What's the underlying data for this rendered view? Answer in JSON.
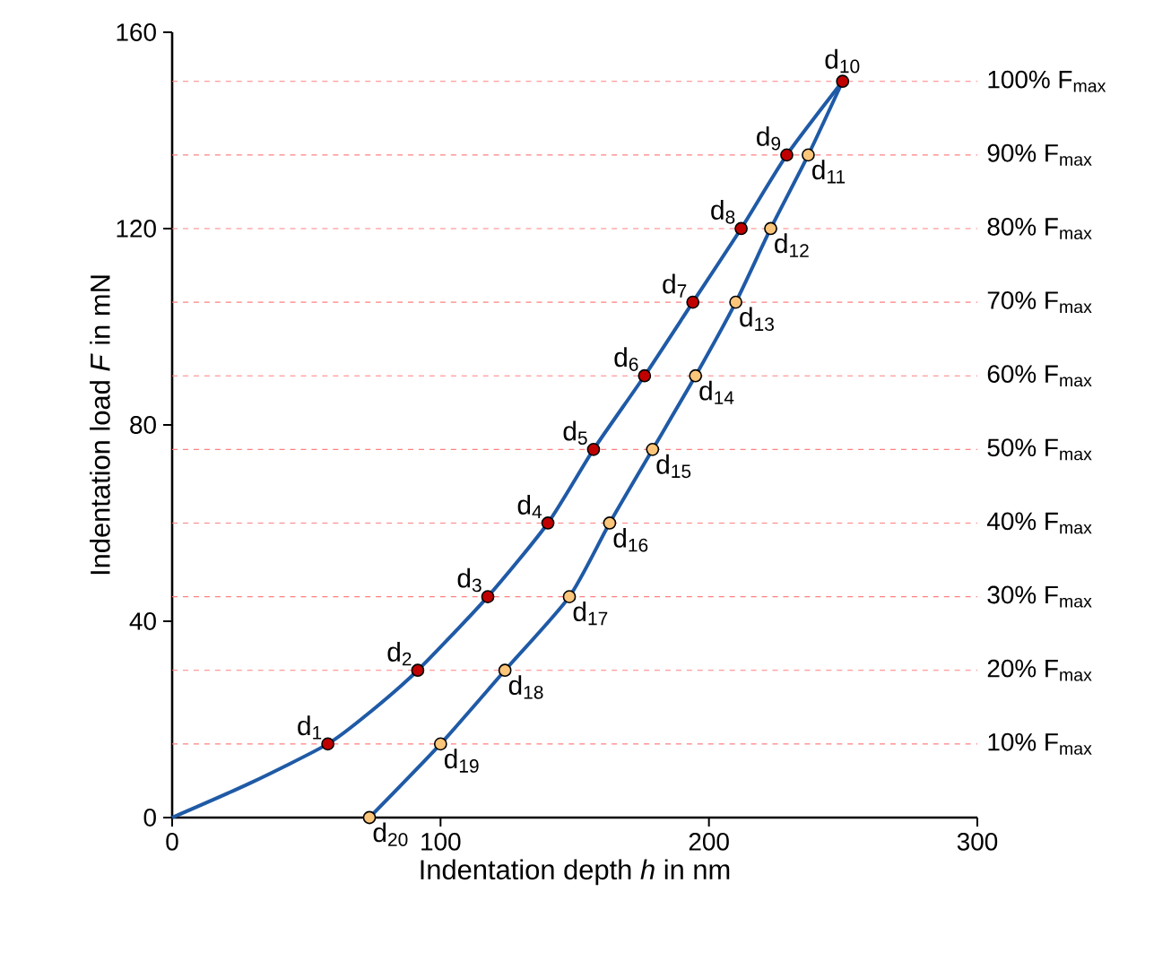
{
  "chart_data": {
    "type": "line",
    "xlabel": "Indentation depth *h* in nm",
    "ylabel": "Indentation load *F* in mN",
    "xlim": [
      0,
      300
    ],
    "xticks": [
      0,
      100,
      200,
      300
    ],
    "ylim": [
      0,
      160
    ],
    "yticks": [
      0,
      40,
      80,
      120,
      160
    ],
    "series": [
      {
        "color": "#1f5aa6",
        "x": [
          0,
          29,
          58,
          74,
          91.5,
          117.6,
          140,
          157,
          176,
          194,
          212,
          229,
          249.8
        ],
        "values": [
          0,
          7,
          15,
          21.6,
          30,
          45,
          60,
          75,
          90,
          105,
          120,
          135,
          150
        ]
      },
      {
        "color": "#1f5aa6",
        "x": [
          249.8,
          237,
          223,
          210,
          195,
          179,
          163,
          148,
          124,
          100,
          73.5
        ],
        "values": [
          150,
          135,
          120,
          105,
          90,
          75,
          60,
          45,
          30,
          15,
          0
        ]
      },
      {
        "type": "scatter",
        "marker": "circle",
        "color": "#c00000",
        "x": [
          58,
          91.5,
          117.6,
          140,
          157,
          176,
          194,
          212,
          229,
          249.8
        ],
        "values": [
          15,
          30,
          45,
          60,
          75,
          90,
          105,
          120,
          135,
          150
        ]
      },
      {
        "type": "scatter",
        "marker": "circle",
        "color": "#fbc57a",
        "x": [
          237,
          223,
          210,
          195,
          179,
          163,
          148,
          124,
          100,
          73.5
        ],
        "values": [
          135,
          120,
          105,
          90,
          75,
          60,
          45,
          30,
          15,
          0
        ]
      }
    ],
    "ref_lines": [
      {
        "axis": "y",
        "value": 15,
        "label": "10% F$_{max}$",
        "color": "#ff8080",
        "line_style": "dashed"
      },
      {
        "axis": "y",
        "value": 30,
        "label": "20% F$_{max}$",
        "color": "#ff8080",
        "line_style": "dashed"
      },
      {
        "axis": "y",
        "value": 45,
        "label": "30% F$_{max}$",
        "color": "#ff8080",
        "line_style": "dashed"
      },
      {
        "axis": "y",
        "value": 60,
        "label": "40% F$_{max}$",
        "color": "#ff8080",
        "line_style": "dashed"
      },
      {
        "axis": "y",
        "value": 75,
        "label": "50% F$_{max}$",
        "color": "#ff8080",
        "line_style": "dashed"
      },
      {
        "axis": "y",
        "value": 90,
        "label": "60% F$_{max}$",
        "color": "#ff8080",
        "line_style": "dashed"
      },
      {
        "axis": "y",
        "value": 105,
        "label": "70% F$_{max}$",
        "color": "#ff8080",
        "line_style": "dashed"
      },
      {
        "axis": "y",
        "value": 120,
        "label": "80% F$_{max}$",
        "color": "#ff8080",
        "line_style": "dashed"
      },
      {
        "axis": "y",
        "value": 135,
        "label": "90% F$_{max}$",
        "color": "#ff8080",
        "line_style": "dashed"
      },
      {
        "axis": "y",
        "value": 150,
        "label": "100% F$_{max}$",
        "color": "#ff8080",
        "line_style": "dashed"
      }
    ],
    "annotations": [
      {
        "text": "d$_{1}$",
        "x": 58,
        "y": 15
      },
      {
        "text": "d$_{2}$",
        "x": 91.5,
        "y": 30
      },
      {
        "text": "d$_{3}$",
        "x": 117.6,
        "y": 45
      },
      {
        "text": "d$_{4}$",
        "x": 140,
        "y": 60
      },
      {
        "text": "d$_{5}$",
        "x": 157,
        "y": 75
      },
      {
        "text": "d$_{6}$",
        "x": 176,
        "y": 90
      },
      {
        "text": "d$_{7}$",
        "x": 194,
        "y": 105
      },
      {
        "text": "d$_{8}$",
        "x": 212,
        "y": 120
      },
      {
        "text": "d$_{9}$",
        "x": 229,
        "y": 135
      },
      {
        "text": "d$_{10}$",
        "x": 249.8,
        "y": 150
      },
      {
        "text": "d$_{11}$",
        "x": 237,
        "y": 135
      },
      {
        "text": "d$_{12}$",
        "x": 223,
        "y": 120
      },
      {
        "text": "d$_{13}$",
        "x": 210,
        "y": 105
      },
      {
        "text": "d$_{14}$",
        "x": 195,
        "y": 90
      },
      {
        "text": "d$_{15}$",
        "x": 179,
        "y": 75
      },
      {
        "text": "d$_{16}$",
        "x": 163,
        "y": 60
      },
      {
        "text": "d$_{17}$",
        "x": 148,
        "y": 45
      },
      {
        "text": "d$_{18}$",
        "x": 124,
        "y": 30
      },
      {
        "text": "d$_{19}$",
        "x": 100,
        "y": 15
      },
      {
        "text": "d$_{20}$",
        "x": 73.5,
        "y": 0
      }
    ]
  }
}
